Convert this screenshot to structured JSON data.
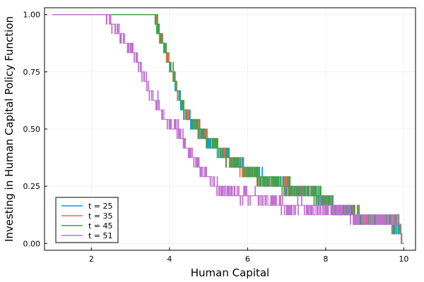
{
  "chart_data": {
    "type": "line",
    "xlabel": "Human Capital",
    "ylabel": "Investing in Human Capital Policy Function",
    "xlim": [
      0.8,
      10.3
    ],
    "ylim": [
      -0.03,
      1.03
    ],
    "x_ticks": [
      2,
      4,
      6,
      8,
      10
    ],
    "y_ticks": [
      0.0,
      0.25,
      0.5,
      0.75,
      1.0
    ],
    "x_tick_labels": [
      "2",
      "4",
      "6",
      "8",
      "10"
    ],
    "y_tick_labels": [
      "0.00",
      "0.25",
      "0.50",
      "0.75",
      "1.00"
    ],
    "grid": true,
    "legend_position": "bottom-left",
    "series": [
      {
        "name": "t = 25",
        "color": "#009AFA",
        "x": [
          1.0,
          3.6,
          3.7,
          3.8,
          3.9,
          4.0,
          4.1,
          4.2,
          4.4,
          4.6,
          4.8,
          5.0,
          5.2,
          5.4,
          5.7,
          5.8,
          6.0,
          6.3,
          6.6,
          7.0,
          7.3,
          7.8,
          8.2,
          8.6,
          8.8,
          9.2,
          9.3,
          9.9,
          9.95,
          10.0
        ],
        "y": [
          1.0,
          1.0,
          0.95,
          0.88,
          0.84,
          0.79,
          0.74,
          0.66,
          0.57,
          0.53,
          0.49,
          0.45,
          0.42,
          0.38,
          0.36,
          0.34,
          0.32,
          0.29,
          0.27,
          0.25,
          0.23,
          0.21,
          0.16,
          0.14,
          0.12,
          0.11,
          0.11,
          0.08,
          0.0,
          0.0
        ]
      },
      {
        "name": "t = 35",
        "color": "#E36F47",
        "x": [
          1.0,
          3.6,
          3.7,
          3.8,
          3.9,
          4.0,
          4.1,
          4.2,
          4.4,
          4.6,
          4.8,
          5.0,
          5.2,
          5.4,
          5.7,
          5.8,
          6.0,
          6.3,
          6.6,
          7.0,
          7.3,
          7.8,
          8.2,
          8.6,
          8.8,
          9.2,
          9.3,
          9.9,
          9.95,
          10.0
        ],
        "y": [
          1.0,
          1.0,
          0.95,
          0.88,
          0.84,
          0.79,
          0.74,
          0.66,
          0.57,
          0.53,
          0.49,
          0.45,
          0.42,
          0.38,
          0.36,
          0.34,
          0.32,
          0.29,
          0.27,
          0.25,
          0.23,
          0.21,
          0.16,
          0.14,
          0.12,
          0.11,
          0.11,
          0.08,
          0.0,
          0.0
        ]
      },
      {
        "name": "t = 45",
        "color": "#3DA44D",
        "x": [
          1.0,
          3.6,
          3.7,
          3.8,
          3.9,
          4.0,
          4.1,
          4.2,
          4.4,
          4.6,
          4.8,
          5.0,
          5.2,
          5.4,
          5.7,
          5.8,
          6.0,
          6.3,
          6.6,
          7.0,
          7.3,
          7.8,
          8.2,
          8.6,
          8.8,
          9.2,
          9.3,
          9.9,
          9.95,
          10.0
        ],
        "y": [
          1.0,
          1.0,
          0.95,
          0.88,
          0.84,
          0.79,
          0.74,
          0.66,
          0.57,
          0.53,
          0.49,
          0.45,
          0.42,
          0.38,
          0.36,
          0.34,
          0.32,
          0.29,
          0.27,
          0.25,
          0.23,
          0.21,
          0.16,
          0.14,
          0.12,
          0.11,
          0.11,
          0.08,
          0.0,
          0.0
        ]
      },
      {
        "name": "t = 51",
        "color": "#C271D2",
        "x": [
          1.0,
          2.3,
          2.5,
          2.7,
          2.9,
          3.1,
          3.3,
          3.5,
          3.7,
          3.9,
          4.1,
          4.3,
          4.5,
          4.7,
          4.9,
          5.1,
          5.4,
          5.8,
          6.2,
          6.6,
          7.0,
          7.5,
          8.0,
          8.5,
          9.0,
          9.1,
          9.2,
          9.9,
          9.95,
          10.0
        ],
        "y": [
          1.0,
          1.0,
          0.96,
          0.93,
          0.88,
          0.83,
          0.74,
          0.66,
          0.62,
          0.54,
          0.52,
          0.48,
          0.41,
          0.35,
          0.31,
          0.26,
          0.23,
          0.21,
          0.21,
          0.18,
          0.16,
          0.16,
          0.15,
          0.13,
          0.11,
          0.1,
          0.1,
          0.1,
          0.0,
          0.0
        ]
      }
    ]
  }
}
